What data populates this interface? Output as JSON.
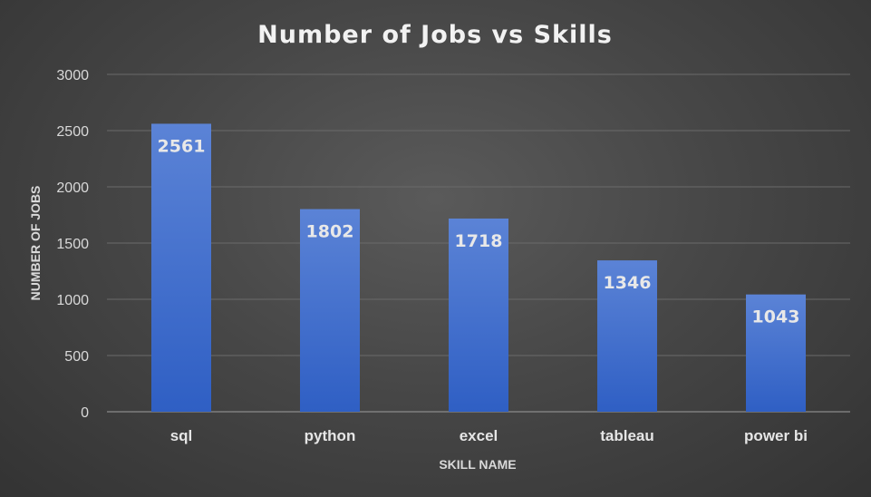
{
  "chart_data": {
    "type": "bar",
    "title": "Number of Jobs vs Skills",
    "xlabel": "SKILL NAME",
    "ylabel": "NUMBER OF JOBS",
    "categories": [
      "sql",
      "python",
      "excel",
      "tableau",
      "power bi"
    ],
    "values": [
      2561,
      1802,
      1718,
      1346,
      1043
    ],
    "data_labels": [
      "2561",
      "1802",
      "1718",
      "1346",
      "1043"
    ],
    "ylim": [
      0,
      3000
    ],
    "yticks": [
      0,
      500,
      1000,
      1500,
      2000,
      2500,
      3000
    ],
    "ytick_labels": [
      "0",
      "500",
      "1000",
      "1500",
      "2000",
      "2500",
      "3000"
    ],
    "grid": true,
    "legend": "none",
    "colors": {
      "bar_top": "#5b83d6",
      "bar_bottom": "#2f5fc4",
      "background": "#474747"
    }
  }
}
